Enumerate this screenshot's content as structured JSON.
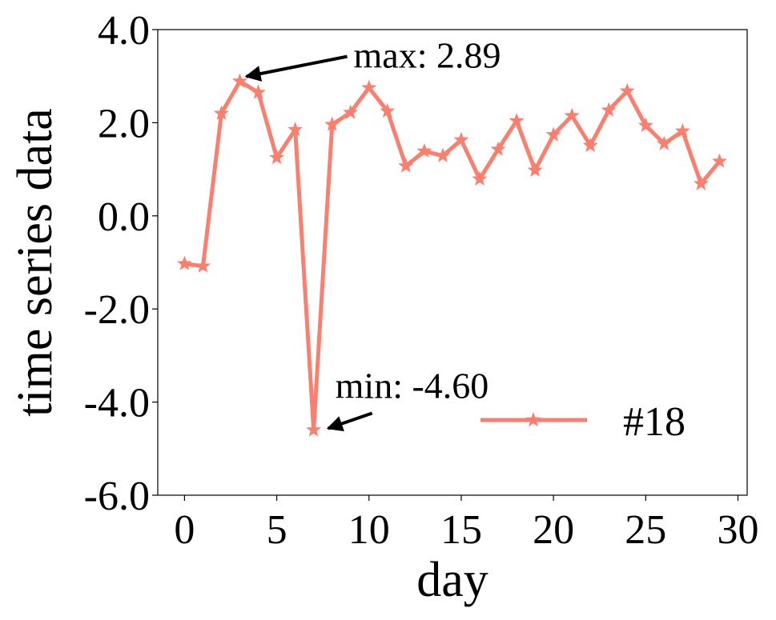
{
  "chart_data": {
    "type": "line",
    "x_label": "day",
    "y_label": "time series data",
    "x": [
      0,
      1,
      2,
      3,
      4,
      5,
      6,
      7,
      8,
      9,
      10,
      11,
      12,
      13,
      14,
      15,
      16,
      17,
      18,
      19,
      20,
      21,
      22,
      23,
      24,
      25,
      26,
      27,
      28,
      29
    ],
    "series": [
      {
        "name": "#18",
        "color": "#fa7f6f",
        "values": [
          -1.03,
          -1.08,
          2.2,
          2.89,
          2.65,
          1.25,
          1.85,
          -4.6,
          1.96,
          2.22,
          2.75,
          2.25,
          1.07,
          1.39,
          1.29,
          1.63,
          0.79,
          1.43,
          2.04,
          0.98,
          1.74,
          2.15,
          1.51,
          2.27,
          2.68,
          1.94,
          1.55,
          1.82,
          0.69,
          1.17
        ]
      }
    ],
    "xlim": [
      -1.45,
      30.5
    ],
    "ylim": [
      -6,
      4
    ],
    "xticks": [
      0,
      5,
      10,
      15,
      20,
      25,
      30
    ],
    "yticks": [
      {
        "value": 4,
        "label": "4.0"
      },
      {
        "value": 2,
        "label": "2.0"
      },
      {
        "value": 0,
        "label": "0.0"
      },
      {
        "value": -2,
        "label": "-2.0"
      },
      {
        "value": -4,
        "label": "-4.0"
      },
      {
        "value": -6,
        "label": "-6.0"
      }
    ],
    "annotations": [
      {
        "text": "max: 2.89",
        "x": 3,
        "y": 2.89
      },
      {
        "text": "min: -4.60",
        "x": 7,
        "y": -4.6
      }
    ],
    "legend": "lower right"
  }
}
